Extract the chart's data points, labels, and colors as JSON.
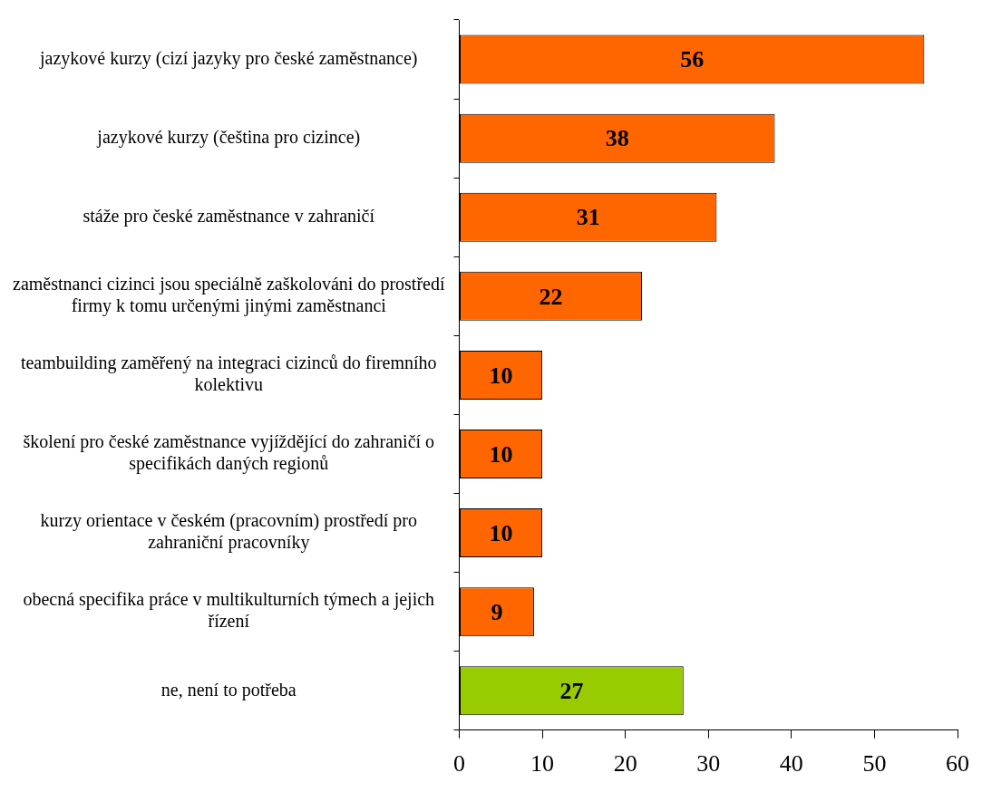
{
  "chart_data": {
    "type": "bar",
    "orientation": "horizontal",
    "categories": [
      "jazykové kurzy (cizí jazyky pro české zaměstnance)",
      "jazykové kurzy (čeština pro cizince)",
      "stáže pro české zaměstnance v zahraničí",
      "zaměstnanci cizinci jsou speciálně zaškolováni do prostředí firmy k tomu určenými jinými zaměstnanci",
      "teambuilding zaměřený na integraci cizinců do firemního kolektivu",
      "školení pro české zaměstnance vyjíždějící do zahraničí o specifikách daných regionů",
      "kurzy orientace v českém (pracovním) prostředí pro zahraniční pracovníky",
      "obecná specifika práce v multikulturních týmech a jejich řízení",
      "ne, není to potřeba"
    ],
    "values": [
      56,
      38,
      31,
      22,
      10,
      10,
      10,
      9,
      27
    ],
    "colors": [
      "#ff6600",
      "#ff6600",
      "#ff6600",
      "#ff6600",
      "#ff6600",
      "#ff6600",
      "#ff6600",
      "#ff6600",
      "#99cc00"
    ],
    "xlim": [
      0,
      60
    ],
    "xticks": [
      0,
      10,
      20,
      30,
      40,
      50,
      60
    ],
    "data_labels": true,
    "grid": false,
    "legend": false
  }
}
